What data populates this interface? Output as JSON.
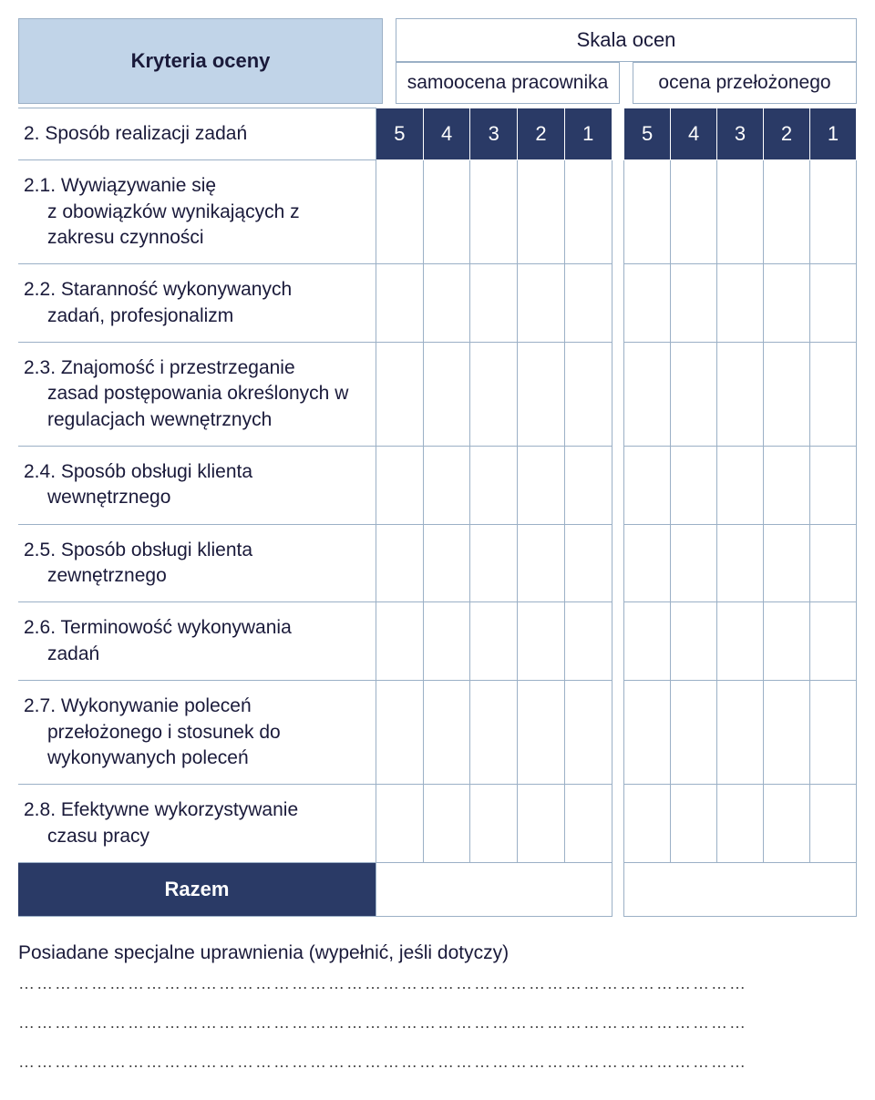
{
  "colors": {
    "header_bg": "#c1d4e8",
    "score_header_bg": "#2a3a66",
    "score_header_text": "#ffffff",
    "border": "#9bb0c6",
    "text": "#1a1a3a",
    "page_bg": "#ffffff"
  },
  "typography": {
    "font_family": "Arial",
    "title_weight": "bold",
    "base_fontsize": 21
  },
  "header": {
    "criteria_title": "Kryteria oceny",
    "scale_title": "Skala ocen",
    "self_label": "samoocena pracownika",
    "supervisor_label": "ocena przełożonego"
  },
  "section_header": {
    "label": "2. Sposób realizacji zadań",
    "scores_self": [
      "5",
      "4",
      "3",
      "2",
      "1"
    ],
    "scores_supervisor": [
      "5",
      "4",
      "3",
      "2",
      "1"
    ]
  },
  "rows": [
    {
      "num": "2.1.",
      "text": "Wywiązywanie się",
      "cont": "z obowiązków wynikających z zakresu czynności"
    },
    {
      "num": "2.2.",
      "text": "Staranność wykonywanych",
      "cont": "zadań, profesjonalizm"
    },
    {
      "num": "2.3.",
      "text": "Znajomość i przestrzeganie",
      "cont": "zasad postępowania określonych w regulacjach wewnętrznych"
    },
    {
      "num": "2.4.",
      "text": "Sposób obsługi klienta",
      "cont": "wewnętrznego"
    },
    {
      "num": "2.5.",
      "text": "Sposób obsługi klienta",
      "cont": "zewnętrznego"
    },
    {
      "num": "2.6.",
      "text": "Terminowość wykonywania",
      "cont": "zadań"
    },
    {
      "num": "2.7.",
      "text": "Wykonywanie poleceń",
      "cont": "przełożonego i stosunek do wykonywanych poleceń"
    },
    {
      "num": "2.8.",
      "text": "Efektywne wykorzystywanie",
      "cont": "czasu pracy"
    }
  ],
  "razem_label": "Razem",
  "footer_text": "Posiadane specjalne uprawnienia (wypełnić, jeśli dotyczy)",
  "dotted": "…………………………………………………………………………………………………………"
}
